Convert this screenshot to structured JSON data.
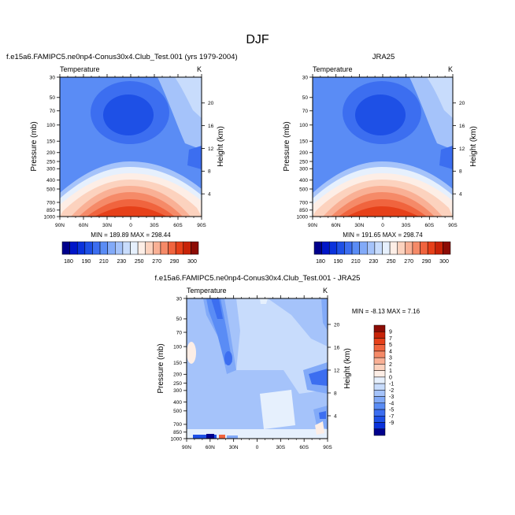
{
  "figure": {
    "title": "DJF"
  },
  "panels": {
    "model": {
      "title": "f.e15a6.FAMIPC5.ne0np4-Conus30x4.Club_Test.001 (yrs 1979-2004)",
      "variable": "Temperature",
      "units": "K",
      "stats": "MIN = 189.89  MAX = 298.44"
    },
    "obs": {
      "title": "JRA25",
      "variable": "Temperature",
      "units": "K",
      "stats": "MIN = 191.65  MAX = 298.74"
    },
    "diff": {
      "title": "f.e15a6.FAMIPC5.ne0np4-Conus30x4.Club_Test.001 - JRA25",
      "variable": "Temperature",
      "units": "K",
      "stats": "MIN =  -8.13  MAX =   7.16"
    }
  },
  "chart_data": [
    {
      "type": "heatmap",
      "panel": "model",
      "xlabel": "",
      "ylabel": "Pressure (mb)",
      "ylabel_right": "Height (km)",
      "x_ticks": [
        "90N",
        "60N",
        "30N",
        "0",
        "30S",
        "60S",
        "90S"
      ],
      "y_ticks": [
        "30",
        "50",
        "70",
        "100",
        "150",
        "200",
        "250",
        "300",
        "400",
        "500",
        "700",
        "850",
        "1000"
      ],
      "y_ticks_right": [
        "20",
        "16",
        "12",
        "8",
        "4"
      ],
      "xlim": [
        90,
        -90
      ],
      "ylim": [
        1000,
        30
      ]
    },
    {
      "type": "heatmap",
      "panel": "obs",
      "xlabel": "",
      "ylabel": "Pressure (mb)",
      "ylabel_right": "Height (km)",
      "x_ticks": [
        "90N",
        "60N",
        "30N",
        "0",
        "30S",
        "60S",
        "90S"
      ],
      "y_ticks": [
        "30",
        "50",
        "70",
        "100",
        "150",
        "200",
        "250",
        "300",
        "400",
        "500",
        "700",
        "850",
        "1000"
      ],
      "y_ticks_right": [
        "20",
        "16",
        "12",
        "8",
        "4"
      ],
      "xlim": [
        90,
        -90
      ],
      "ylim": [
        1000,
        30
      ]
    },
    {
      "type": "heatmap",
      "panel": "diff",
      "xlabel": "",
      "ylabel": "Pressure (mb)",
      "ylabel_right": "Height (km)",
      "x_ticks": [
        "90N",
        "60N",
        "30N",
        "0",
        "30S",
        "60S",
        "90S"
      ],
      "y_ticks": [
        "30",
        "50",
        "70",
        "100",
        "150",
        "200",
        "250",
        "300",
        "400",
        "500",
        "700",
        "850",
        "1000"
      ],
      "y_ticks_right": [
        "20",
        "16",
        "12",
        "8",
        "4"
      ],
      "xlim": [
        90,
        -90
      ],
      "ylim": [
        1000,
        30
      ]
    }
  ],
  "colorbars": {
    "absolute": {
      "labels": [
        "180",
        "190",
        "210",
        "230",
        "250",
        "270",
        "290",
        "300"
      ],
      "colors": [
        "#00008c",
        "#0016c8",
        "#0a32dc",
        "#1e50e6",
        "#3c6ef0",
        "#5a8cf5",
        "#82aaf8",
        "#a5c3fa",
        "#c8dcfc",
        "#e6f0fd",
        "#fdeee6",
        "#fcd2be",
        "#f9b095",
        "#f58a68",
        "#f0643e",
        "#e64019",
        "#c82308",
        "#8c0c05"
      ]
    },
    "difference": {
      "labels": [
        "9",
        "7",
        "5",
        "4",
        "3",
        "2",
        "1",
        "0",
        "-1",
        "-2",
        "-3",
        "-4",
        "-5",
        "-7",
        "-9"
      ],
      "colors": [
        "#8c0c05",
        "#c82308",
        "#e64019",
        "#f0643e",
        "#f58a68",
        "#f9b095",
        "#fcd2be",
        "#fdeee6",
        "#e6f0fd",
        "#c8dcfc",
        "#a5c3fa",
        "#82aaf8",
        "#5a8cf5",
        "#3c6ef0",
        "#1e50e6",
        "#0a32dc",
        "#00008c"
      ]
    }
  }
}
